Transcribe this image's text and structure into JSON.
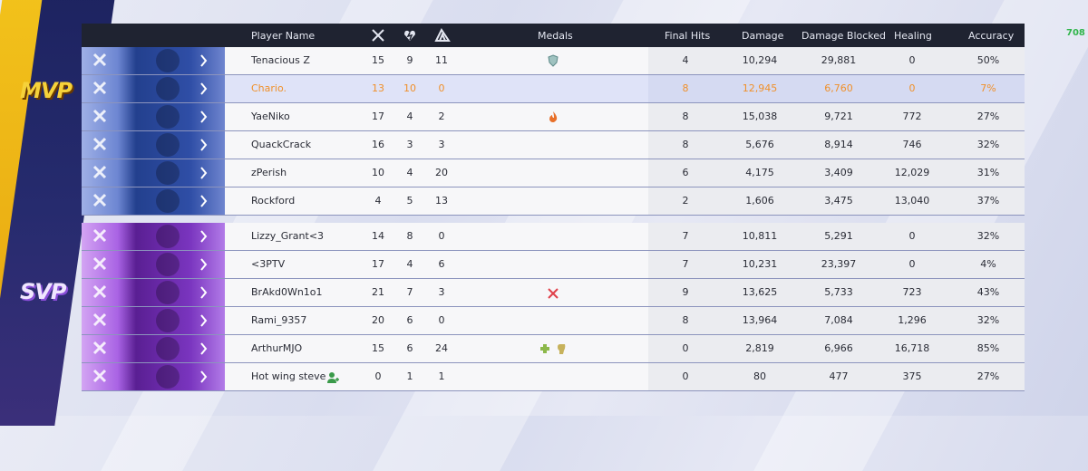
{
  "badges": [
    "MVP",
    "SVP"
  ],
  "corner_text": "708",
  "headers": [
    "Player Name",
    "Medals",
    "Final Hits",
    "Damage",
    "Damage Blocked",
    "Healing",
    "Accuracy"
  ],
  "teams": [
    {
      "rows": [
        [
          "Tenacious Z",
          "15",
          "9",
          "11",
          "4",
          "10,294",
          "29,881",
          "0",
          "50%"
        ],
        [
          "Chario.",
          "13",
          "10",
          "0",
          "8",
          "12,945",
          "6,760",
          "0",
          "7%"
        ],
        [
          "YaeNiko",
          "17",
          "4",
          "2",
          "8",
          "15,038",
          "9,721",
          "772",
          "27%"
        ],
        [
          "QuackCrack",
          "16",
          "3",
          "3",
          "8",
          "5,676",
          "8,914",
          "746",
          "32%"
        ],
        [
          "zPerish",
          "10",
          "4",
          "20",
          "6",
          "4,175",
          "3,409",
          "12,029",
          "31%"
        ],
        [
          "Rockford",
          "4",
          "5",
          "13",
          "2",
          "1,606",
          "3,475",
          "13,040",
          "37%"
        ]
      ]
    },
    {
      "rows": [
        [
          "Lizzy_Grant<3",
          "14",
          "8",
          "0",
          "7",
          "10,811",
          "5,291",
          "0",
          "32%"
        ],
        [
          "<3PTV",
          "17",
          "4",
          "6",
          "7",
          "10,231",
          "23,397",
          "0",
          "4%"
        ],
        [
          "BrAkd0Wn1o1",
          "21",
          "7",
          "3",
          "9",
          "13,625",
          "5,733",
          "723",
          "43%"
        ],
        [
          "Rami_9357",
          "20",
          "6",
          "0",
          "8",
          "13,964",
          "7,084",
          "1,296",
          "32%"
        ],
        [
          "ArthurMJO",
          "15",
          "6",
          "24",
          "0",
          "2,819",
          "6,966",
          "16,718",
          "85%"
        ],
        [
          "Hot wing steve",
          "0",
          "1",
          "1",
          "0",
          "80",
          "477",
          "375",
          "27%"
        ]
      ]
    }
  ]
}
